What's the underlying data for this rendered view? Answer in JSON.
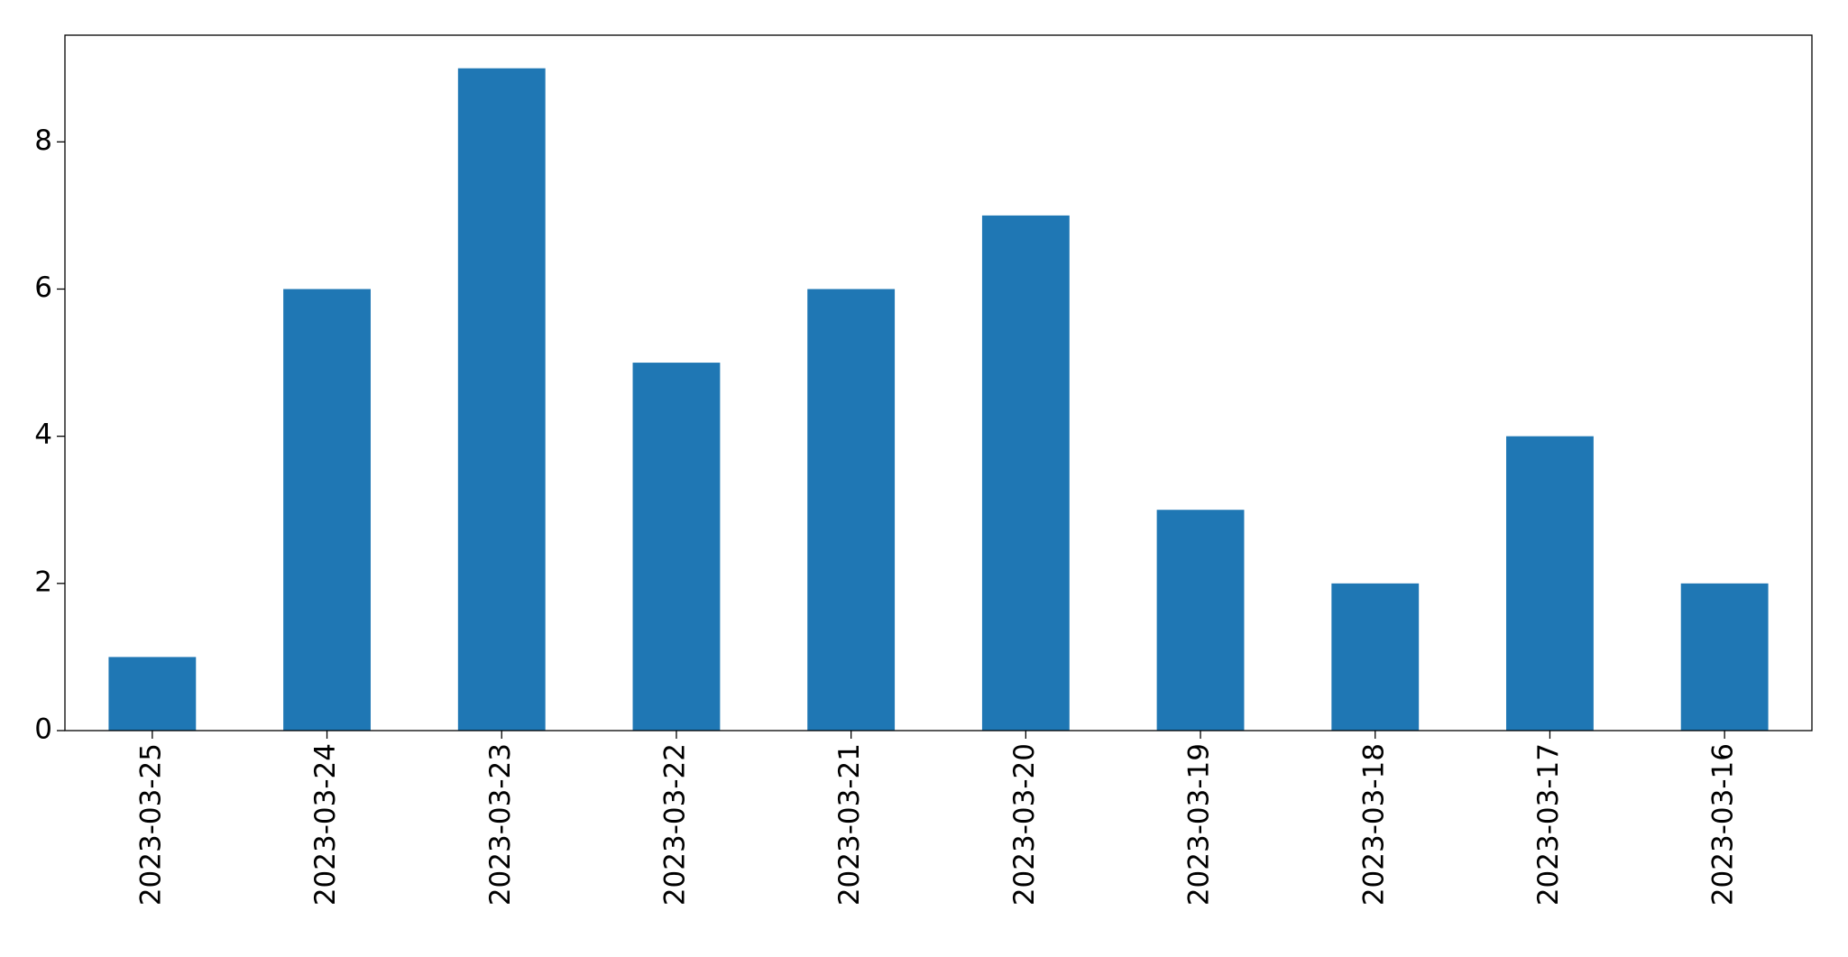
{
  "chart_data": {
    "type": "bar",
    "categories": [
      "2023-03-25",
      "2023-03-24",
      "2023-03-23",
      "2023-03-22",
      "2023-03-21",
      "2023-03-20",
      "2023-03-19",
      "2023-03-18",
      "2023-03-17",
      "2023-03-16"
    ],
    "values": [
      1,
      6,
      9,
      5,
      6,
      7,
      3,
      2,
      4,
      2
    ],
    "color": "#1f77b4",
    "ylim": [
      0,
      9.45
    ],
    "yticks": [
      0,
      2,
      4,
      6,
      8
    ],
    "grid": false
  }
}
